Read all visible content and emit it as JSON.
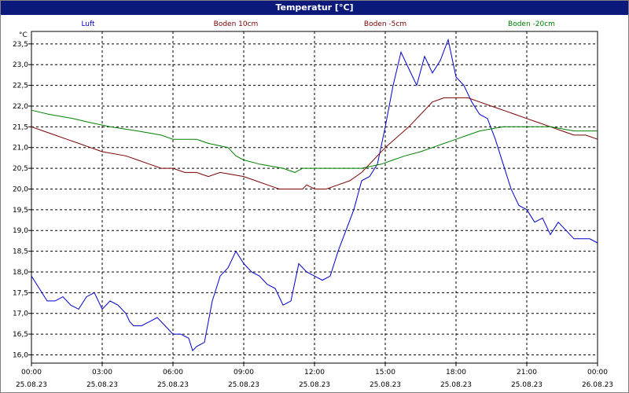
{
  "window": {
    "title": "Temperatur [°C]"
  },
  "chart_data": {
    "type": "line",
    "title": "Temperatur [°C]",
    "ylabel": "°C",
    "ylim": [
      15.8,
      23.8
    ],
    "xlim": [
      "00:00",
      "24:00"
    ],
    "yticks": [
      "16,0",
      "16,5",
      "17,0",
      "17,5",
      "18,0",
      "18,5",
      "19,0",
      "19,5",
      "20,0",
      "20,5",
      "21,0",
      "21,5",
      "22,0",
      "22,5",
      "23,0",
      "23,5"
    ],
    "xticks": [
      {
        "time": "00:00",
        "date": "25.08.23"
      },
      {
        "time": "03:00",
        "date": "25.08.23"
      },
      {
        "time": "06:00",
        "date": "25.08.23"
      },
      {
        "time": "09:00",
        "date": "25.08.23"
      },
      {
        "time": "12:00",
        "date": "25.08.23"
      },
      {
        "time": "15:00",
        "date": "25.08.23"
      },
      {
        "time": "18:00",
        "date": "25.08.23"
      },
      {
        "time": "21:00",
        "date": "25.08.23"
      },
      {
        "time": "00:00",
        "date": "26.08.23"
      }
    ],
    "grid": true,
    "legend_position": "top",
    "series": [
      {
        "name": "Luft",
        "color": "#0000cc",
        "points": [
          [
            "00:00",
            17.9
          ],
          [
            "00:20",
            17.6
          ],
          [
            "00:40",
            17.3
          ],
          [
            "01:00",
            17.3
          ],
          [
            "01:20",
            17.4
          ],
          [
            "01:40",
            17.2
          ],
          [
            "02:00",
            17.1
          ],
          [
            "02:20",
            17.4
          ],
          [
            "02:40",
            17.5
          ],
          [
            "03:00",
            17.1
          ],
          [
            "03:20",
            17.3
          ],
          [
            "03:40",
            17.2
          ],
          [
            "04:00",
            17.0
          ],
          [
            "04:10",
            16.8
          ],
          [
            "04:20",
            16.7
          ],
          [
            "04:40",
            16.7
          ],
          [
            "05:00",
            16.8
          ],
          [
            "05:20",
            16.9
          ],
          [
            "05:40",
            16.7
          ],
          [
            "06:00",
            16.5
          ],
          [
            "06:20",
            16.5
          ],
          [
            "06:40",
            16.4
          ],
          [
            "06:50",
            16.1
          ],
          [
            "07:00",
            16.2
          ],
          [
            "07:20",
            16.3
          ],
          [
            "07:40",
            17.3
          ],
          [
            "08:00",
            17.9
          ],
          [
            "08:20",
            18.1
          ],
          [
            "08:40",
            18.5
          ],
          [
            "09:00",
            18.2
          ],
          [
            "09:20",
            18.0
          ],
          [
            "09:40",
            17.9
          ],
          [
            "10:00",
            17.7
          ],
          [
            "10:20",
            17.6
          ],
          [
            "10:40",
            17.2
          ],
          [
            "11:00",
            17.3
          ],
          [
            "11:20",
            18.2
          ],
          [
            "11:40",
            18.0
          ],
          [
            "12:00",
            17.9
          ],
          [
            "12:20",
            17.8
          ],
          [
            "12:40",
            17.9
          ],
          [
            "13:00",
            18.5
          ],
          [
            "13:20",
            19.0
          ],
          [
            "13:40",
            19.5
          ],
          [
            "14:00",
            20.2
          ],
          [
            "14:20",
            20.3
          ],
          [
            "14:40",
            20.6
          ],
          [
            "15:00",
            21.5
          ],
          [
            "15:20",
            22.5
          ],
          [
            "15:40",
            23.3
          ],
          [
            "16:00",
            22.9
          ],
          [
            "16:20",
            22.5
          ],
          [
            "16:40",
            23.2
          ],
          [
            "17:00",
            22.8
          ],
          [
            "17:20",
            23.1
          ],
          [
            "17:40",
            23.6
          ],
          [
            "18:00",
            22.7
          ],
          [
            "18:20",
            22.5
          ],
          [
            "18:40",
            22.1
          ],
          [
            "19:00",
            21.8
          ],
          [
            "19:20",
            21.7
          ],
          [
            "19:40",
            21.2
          ],
          [
            "20:00",
            20.6
          ],
          [
            "20:20",
            20.0
          ],
          [
            "20:40",
            19.6
          ],
          [
            "21:00",
            19.5
          ],
          [
            "21:20",
            19.2
          ],
          [
            "21:40",
            19.3
          ],
          [
            "22:00",
            18.9
          ],
          [
            "22:20",
            19.2
          ],
          [
            "22:40",
            19.0
          ],
          [
            "23:00",
            18.8
          ],
          [
            "23:20",
            18.8
          ],
          [
            "23:40",
            18.8
          ],
          [
            "24:00",
            18.7
          ]
        ]
      },
      {
        "name": "Boden 10cm",
        "color": "#7a0000",
        "points": [
          [
            "00:00",
            21.5
          ],
          [
            "00:30",
            21.4
          ],
          [
            "01:00",
            21.3
          ],
          [
            "01:30",
            21.2
          ],
          [
            "02:00",
            21.1
          ],
          [
            "02:30",
            21.0
          ],
          [
            "03:00",
            20.9
          ],
          [
            "04:00",
            20.8
          ],
          [
            "04:30",
            20.7
          ],
          [
            "05:00",
            20.6
          ],
          [
            "05:30",
            20.5
          ],
          [
            "06:00",
            20.5
          ],
          [
            "06:30",
            20.4
          ],
          [
            "07:00",
            20.4
          ],
          [
            "07:30",
            20.3
          ],
          [
            "08:00",
            20.4
          ],
          [
            "09:00",
            20.3
          ],
          [
            "09:30",
            20.2
          ],
          [
            "10:00",
            20.1
          ],
          [
            "10:30",
            20.0
          ],
          [
            "11:30",
            20.0
          ],
          [
            "11:40",
            20.1
          ],
          [
            "12:00",
            20.0
          ],
          [
            "12:30",
            20.0
          ],
          [
            "13:00",
            20.1
          ],
          [
            "13:30",
            20.2
          ],
          [
            "14:00",
            20.4
          ],
          [
            "15:00",
            21.0
          ],
          [
            "16:00",
            21.5
          ],
          [
            "17:00",
            22.1
          ],
          [
            "17:30",
            22.2
          ],
          [
            "18:00",
            22.2
          ],
          [
            "18:30",
            22.2
          ],
          [
            "19:00",
            22.1
          ],
          [
            "19:30",
            22.0
          ],
          [
            "20:00",
            21.9
          ],
          [
            "20:30",
            21.8
          ],
          [
            "21:00",
            21.7
          ],
          [
            "21:30",
            21.6
          ],
          [
            "22:00",
            21.5
          ],
          [
            "22:30",
            21.4
          ],
          [
            "23:00",
            21.3
          ],
          [
            "23:30",
            21.3
          ],
          [
            "24:00",
            21.2
          ]
        ]
      },
      {
        "name": "Boden -5cm",
        "color": "#7a0000",
        "points": []
      },
      {
        "name": "Boden -20cm",
        "color": "#008000",
        "points": [
          [
            "00:00",
            21.9
          ],
          [
            "00:45",
            21.8
          ],
          [
            "01:45",
            21.7
          ],
          [
            "02:30",
            21.6
          ],
          [
            "03:20",
            21.5
          ],
          [
            "04:30",
            21.4
          ],
          [
            "05:30",
            21.3
          ],
          [
            "06:00",
            21.2
          ],
          [
            "07:00",
            21.2
          ],
          [
            "07:30",
            21.1
          ],
          [
            "08:20",
            21.0
          ],
          [
            "08:40",
            20.8
          ],
          [
            "09:00",
            20.7
          ],
          [
            "09:40",
            20.6
          ],
          [
            "10:40",
            20.5
          ],
          [
            "11:10",
            20.4
          ],
          [
            "11:30",
            20.5
          ],
          [
            "12:00",
            20.5
          ],
          [
            "13:00",
            20.5
          ],
          [
            "14:00",
            20.5
          ],
          [
            "14:50",
            20.6
          ],
          [
            "15:20",
            20.7
          ],
          [
            "15:50",
            20.8
          ],
          [
            "16:30",
            20.9
          ],
          [
            "17:00",
            21.0
          ],
          [
            "17:30",
            21.1
          ],
          [
            "18:00",
            21.2
          ],
          [
            "18:30",
            21.3
          ],
          [
            "19:00",
            21.4
          ],
          [
            "20:00",
            21.5
          ],
          [
            "21:00",
            21.5
          ],
          [
            "22:00",
            21.5
          ],
          [
            "23:00",
            21.4
          ],
          [
            "24:00",
            21.4
          ]
        ]
      }
    ]
  }
}
